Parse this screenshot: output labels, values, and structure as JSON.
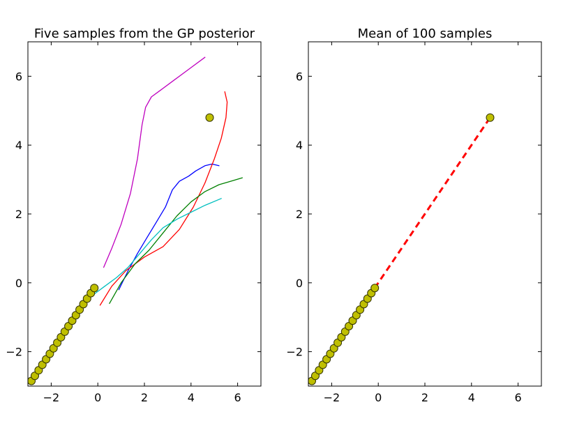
{
  "chart_data": [
    {
      "type": "line",
      "title": "Five samples from the GP posterior",
      "xlabel": "",
      "ylabel": "",
      "xlim": [
        -3,
        7
      ],
      "ylim": [
        -3,
        7
      ],
      "xticks": [
        -2,
        0,
        2,
        4,
        6
      ],
      "yticks": [
        -2,
        0,
        2,
        4,
        6
      ],
      "xtick_labels": [
        "−2",
        "0",
        "2",
        "4",
        "6"
      ],
      "ytick_labels": [
        "−2",
        "0",
        "2",
        "4",
        "6"
      ],
      "grid": false,
      "points": {
        "color": "#bfbf00",
        "x": [
          -2.85,
          -2.7,
          -2.54,
          -2.38,
          -2.22,
          -2.06,
          -1.9,
          -1.74,
          -1.58,
          -1.42,
          -1.26,
          -1.1,
          -0.94,
          -0.78,
          -0.62,
          -0.46,
          -0.3,
          -0.15,
          4.8
        ],
        "y": [
          -2.85,
          -2.7,
          -2.54,
          -2.38,
          -2.22,
          -2.06,
          -1.9,
          -1.74,
          -1.58,
          -1.42,
          -1.26,
          -1.1,
          -0.94,
          -0.78,
          -0.62,
          -0.46,
          -0.3,
          -0.15,
          4.8
        ]
      },
      "series": [
        {
          "color": "#bf00bf",
          "x": [
            0.25,
            0.6,
            1.0,
            1.4,
            1.7,
            1.9,
            2.05,
            2.3,
            2.7,
            3.3,
            4.0,
            4.6
          ],
          "y": [
            0.45,
            1.0,
            1.7,
            2.6,
            3.6,
            4.6,
            5.1,
            5.4,
            5.6,
            5.9,
            6.25,
            6.55
          ]
        },
        {
          "color": "#0000ff",
          "x": [
            0.9,
            1.3,
            1.7,
            2.1,
            2.5,
            2.9,
            3.2,
            3.5,
            3.9,
            4.2,
            4.6,
            4.9,
            5.2
          ],
          "y": [
            -0.2,
            0.35,
            0.85,
            1.3,
            1.75,
            2.2,
            2.7,
            2.95,
            3.1,
            3.25,
            3.4,
            3.45,
            3.4
          ]
        },
        {
          "color": "#ff0000",
          "x": [
            0.1,
            0.6,
            1.2,
            2.0,
            2.8,
            3.5,
            4.1,
            4.6,
            5.0,
            5.3,
            5.5,
            5.55,
            5.45
          ],
          "y": [
            -0.65,
            -0.1,
            0.35,
            0.75,
            1.05,
            1.55,
            2.2,
            2.9,
            3.6,
            4.2,
            4.8,
            5.25,
            5.55
          ]
        },
        {
          "color": "#008000",
          "x": [
            0.5,
            1.0,
            1.6,
            2.2,
            2.8,
            3.4,
            4.0,
            4.6,
            5.2,
            5.7,
            6.2
          ],
          "y": [
            -0.6,
            0.0,
            0.55,
            0.95,
            1.45,
            1.95,
            2.35,
            2.65,
            2.85,
            2.95,
            3.05
          ]
        },
        {
          "color": "#00bfbf",
          "x": [
            -0.6,
            -0.2,
            0.3,
            0.8,
            1.3,
            1.8,
            2.3,
            2.8,
            3.4,
            4.0,
            4.6,
            5.3
          ],
          "y": [
            -0.55,
            -0.35,
            -0.1,
            0.15,
            0.45,
            0.85,
            1.25,
            1.6,
            1.85,
            2.05,
            2.25,
            2.45
          ]
        }
      ]
    },
    {
      "type": "line",
      "title": "Mean of 100 samples",
      "xlabel": "",
      "ylabel": "",
      "xlim": [
        -3,
        7
      ],
      "ylim": [
        -3,
        7
      ],
      "xticks": [
        -2,
        0,
        2,
        4,
        6
      ],
      "yticks": [
        -2,
        0,
        2,
        4,
        6
      ],
      "xtick_labels": [
        "−2",
        "0",
        "2",
        "4",
        "6"
      ],
      "ytick_labels": [
        "−2",
        "0",
        "2",
        "4",
        "6"
      ],
      "grid": false,
      "points": {
        "color": "#bfbf00",
        "x": [
          -2.85,
          -2.7,
          -2.54,
          -2.38,
          -2.22,
          -2.06,
          -1.9,
          -1.74,
          -1.58,
          -1.42,
          -1.26,
          -1.1,
          -0.94,
          -0.78,
          -0.62,
          -0.46,
          -0.3,
          -0.15,
          4.8
        ],
        "y": [
          -2.85,
          -2.7,
          -2.54,
          -2.38,
          -2.22,
          -2.06,
          -1.9,
          -1.74,
          -1.58,
          -1.42,
          -1.26,
          -1.1,
          -0.94,
          -0.78,
          -0.62,
          -0.46,
          -0.3,
          -0.15,
          4.8
        ]
      },
      "series": [
        {
          "color": "#ff0000",
          "style": "dashed",
          "x": [
            -0.15,
            0.5,
            1.5,
            2.5,
            3.5,
            4.5,
            4.8
          ],
          "y": [
            -0.15,
            0.5,
            1.5,
            2.5,
            3.5,
            4.5,
            4.8
          ]
        }
      ]
    }
  ]
}
